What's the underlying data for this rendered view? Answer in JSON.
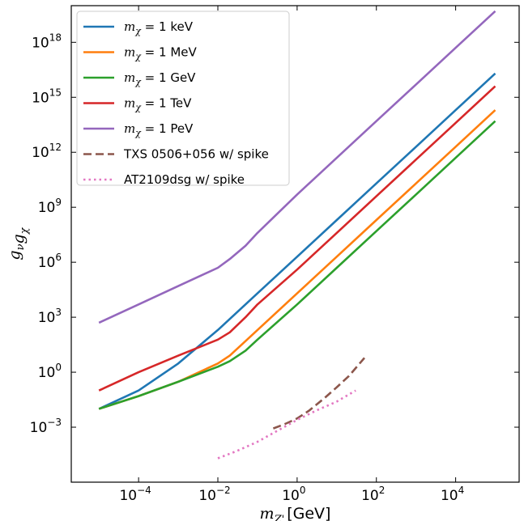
{
  "chart_data": {
    "type": "line",
    "xscale": "log",
    "yscale": "log",
    "xlim": [
      2e-06,
      400000.0
    ],
    "ylim": [
      1e-06,
      1e+20
    ],
    "xlabel": "m_{Z'} [GeV]",
    "ylabel": "g_ν g_χ",
    "x_ticks": [
      {
        "value": 0.0001,
        "mantissa": "10",
        "exp": "−4"
      },
      {
        "value": 0.01,
        "mantissa": "10",
        "exp": "−2"
      },
      {
        "value": 1,
        "mantissa": "10",
        "exp": "0"
      },
      {
        "value": 100,
        "mantissa": "10",
        "exp": "2"
      },
      {
        "value": 10000,
        "mantissa": "10",
        "exp": "4"
      }
    ],
    "y_ticks": [
      {
        "value": 0.001,
        "mantissa": "10",
        "exp": "−3"
      },
      {
        "value": 1,
        "mantissa": "10",
        "exp": "0"
      },
      {
        "value": 1000,
        "mantissa": "10",
        "exp": "3"
      },
      {
        "value": 1000000,
        "mantissa": "10",
        "exp": "6"
      },
      {
        "value": 1000000000.0,
        "mantissa": "10",
        "exp": "9"
      },
      {
        "value": 1000000000000.0,
        "mantissa": "10",
        "exp": "12"
      },
      {
        "value": 1000000000000000.0,
        "mantissa": "10",
        "exp": "15"
      },
      {
        "value": 1e+18,
        "mantissa": "10",
        "exp": "18"
      }
    ],
    "grid": false,
    "legend_position": "top-left",
    "series": [
      {
        "label_prefix": "m",
        "label_sub": "χ",
        "label_value": " = 1 keV",
        "color": "#1f77b4",
        "style": "solid",
        "x": [
          1e-05,
          0.0001,
          0.001,
          0.01,
          0.1,
          1,
          10,
          100,
          1000,
          10000,
          100000
        ],
        "y": [
          0.01,
          0.1,
          3,
          200,
          20000,
          2000000,
          200000000,
          20000000000.0,
          2000000000000.0,
          200000000000000.0,
          2e+16
        ]
      },
      {
        "label_prefix": "m",
        "label_sub": "χ",
        "label_value": " = 1 MeV",
        "color": "#ff7f0e",
        "style": "solid",
        "x": [
          1e-05,
          0.0001,
          0.001,
          0.01,
          0.02,
          0.05,
          0.1,
          1,
          10,
          100,
          1000,
          10000,
          100000
        ],
        "y": [
          0.01,
          0.05,
          0.3,
          3,
          8,
          50,
          200,
          20000,
          2000000,
          200000000,
          20000000000.0,
          2000000000000.0,
          200000000000000.0
        ]
      },
      {
        "label_prefix": "m",
        "label_sub": "χ",
        "label_value": " = 1 GeV",
        "color": "#2ca02c",
        "style": "solid",
        "x": [
          1e-05,
          0.0001,
          0.001,
          0.01,
          0.02,
          0.05,
          0.1,
          1,
          10,
          100,
          1000,
          10000,
          100000
        ],
        "y": [
          0.01,
          0.05,
          0.3,
          2,
          4,
          15,
          60,
          5000,
          500000,
          50000000,
          5000000000.0,
          500000000000.0,
          50000000000000.0
        ]
      },
      {
        "label_prefix": "m",
        "label_sub": "χ",
        "label_value": " = 1 TeV",
        "color": "#d62728",
        "style": "solid",
        "x": [
          1e-05,
          0.0001,
          0.001,
          0.01,
          0.02,
          0.05,
          0.1,
          1,
          10,
          100,
          1000,
          10000,
          100000
        ],
        "y": [
          0.1,
          1,
          8,
          60,
          150,
          1000,
          5000,
          400000,
          40000000,
          4000000000.0,
          400000000000.0,
          40000000000000.0,
          4000000000000000.0
        ]
      },
      {
        "label_prefix": "m",
        "label_sub": "χ",
        "label_value": " = 1 PeV",
        "color": "#9467bd",
        "style": "solid",
        "x": [
          1e-05,
          0.0001,
          0.001,
          0.01,
          0.02,
          0.05,
          0.1,
          1,
          10,
          100,
          1000,
          10000,
          100000
        ],
        "y": [
          500,
          5000,
          50000,
          500000,
          1500000,
          8000000,
          40000000,
          5000000000,
          500000000000.0,
          50000000000000.0,
          5000000000000000.0,
          5e+17,
          5e+19
        ]
      },
      {
        "label_text": "TXS 0506+056 w/ spike",
        "color": "#8c564b",
        "style": "dashed",
        "x": [
          0.25,
          0.5,
          1,
          2,
          5,
          10,
          20,
          50
        ],
        "y": [
          0.00085,
          0.0015,
          0.003,
          0.008,
          0.04,
          0.15,
          0.6,
          6
        ]
      },
      {
        "label_text": "AT2109dsg w/ spike",
        "color": "#e377c2",
        "style": "dotted",
        "x": [
          0.01,
          0.03,
          0.1,
          0.3,
          1,
          3,
          10,
          30
        ],
        "y": [
          2e-05,
          5e-05,
          0.00016,
          0.0006,
          0.0025,
          0.008,
          0.025,
          0.1
        ]
      }
    ]
  }
}
